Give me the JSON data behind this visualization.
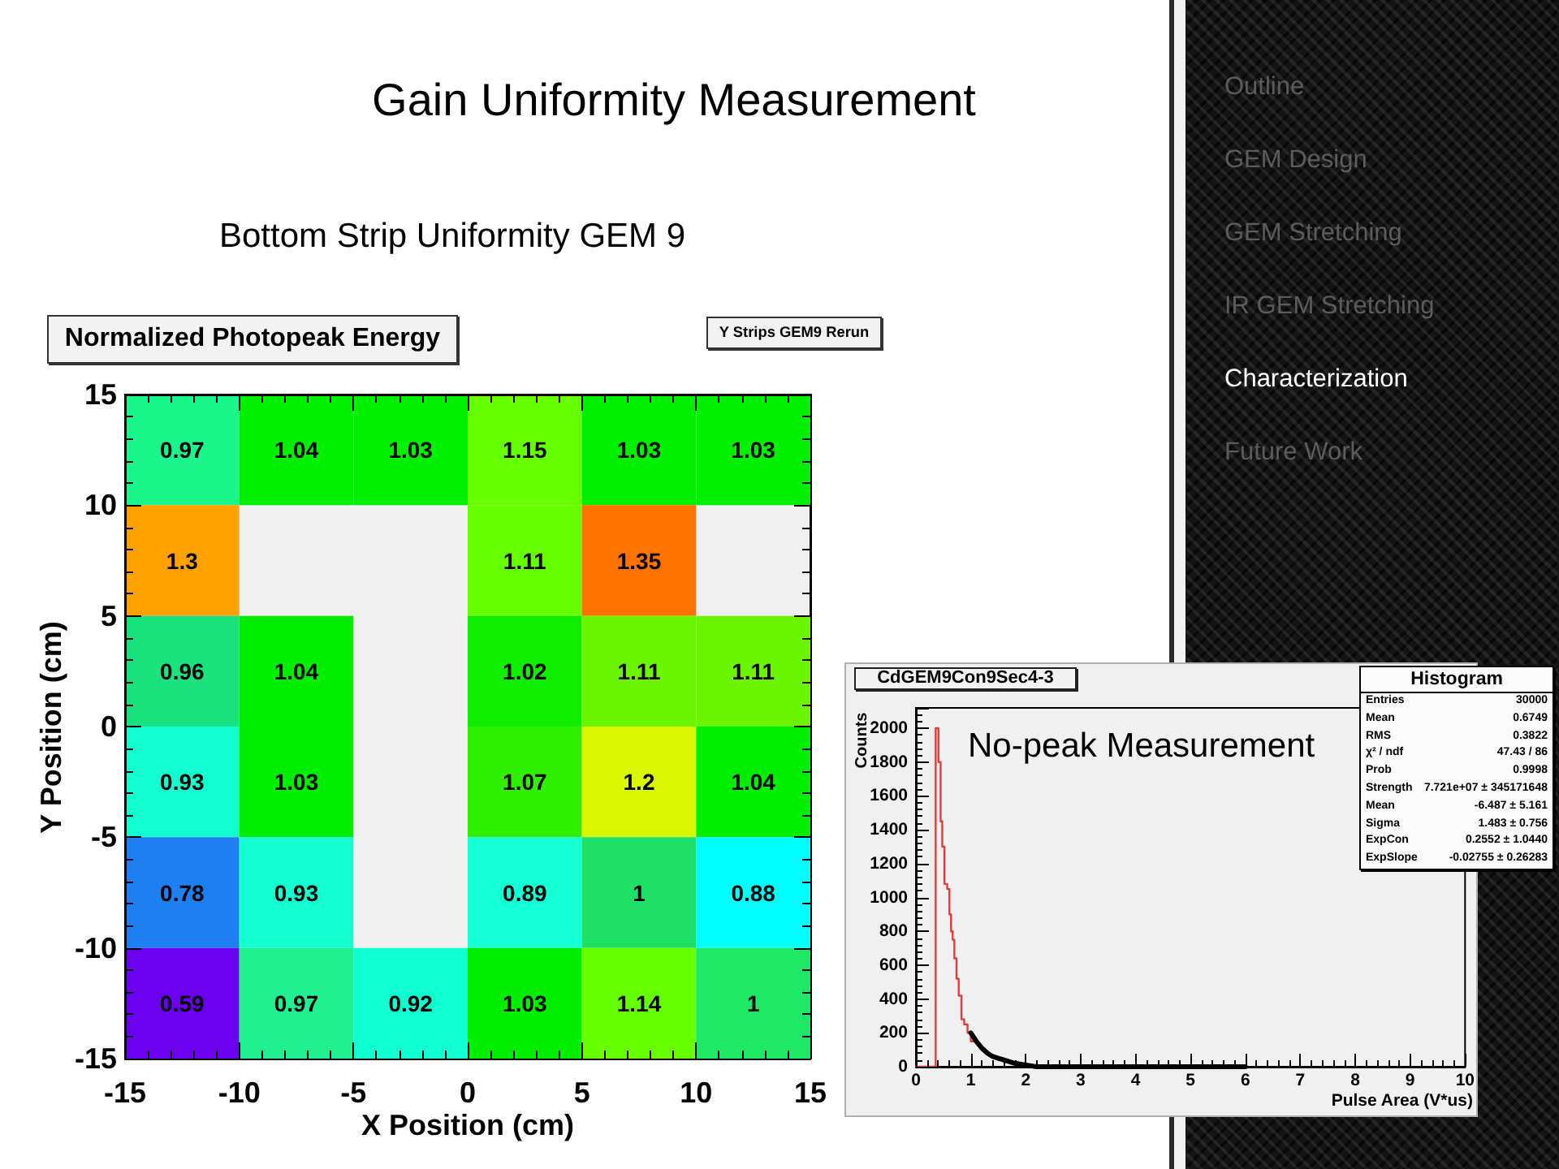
{
  "chart_data": [
    {
      "type": "heatmap",
      "title": "Gain Uniformity Measurement",
      "subtitle": "Bottom Strip Uniformity GEM 9",
      "annotations": [
        "Normalized Photopeak Energy",
        "Y Strips GEM9 Rerun"
      ],
      "xlabel": "X Position (cm)",
      "ylabel": "Y Position (cm)",
      "xlim": [
        -15,
        15
      ],
      "xticks": [
        -15,
        -10,
        -5,
        0,
        5,
        10,
        15
      ],
      "ylim": [
        -15,
        15
      ],
      "yticks": [
        -15,
        -10,
        -5,
        0,
        5,
        10,
        15
      ],
      "cells": [
        [
          0.97,
          1.04,
          1.03,
          1.15,
          1.03,
          1.03
        ],
        [
          1.3,
          null,
          null,
          1.11,
          1.35,
          null
        ],
        [
          0.96,
          1.04,
          null,
          1.02,
          1.11,
          1.11
        ],
        [
          0.93,
          1.03,
          null,
          1.07,
          1.2,
          1.04
        ],
        [
          0.78,
          0.93,
          null,
          0.89,
          1,
          0.88
        ],
        [
          0.59,
          0.97,
          0.92,
          1.03,
          1.14,
          1
        ]
      ],
      "colors": [
        [
          "#1af58c",
          "#00f000",
          "#00f000",
          "#66ff00",
          "#00f000",
          "#00f000"
        ],
        [
          "#ffa200",
          null,
          null,
          "#66ff00",
          "#ff7300",
          null
        ],
        [
          "#1ae27e",
          "#00ee00",
          null,
          "#10ee00",
          "#6cf500",
          "#6cf500"
        ],
        [
          "#12ffd0",
          "#00ee00",
          null,
          "#30f000",
          "#d9f700",
          "#00ee00"
        ],
        [
          "#1e7ff0",
          "#14ffd0",
          null,
          "#14ffd6",
          "#1ee066",
          "#00ffff"
        ],
        [
          "#6a00ee",
          "#20f090",
          "#10ffd0",
          "#00ee00",
          "#66ff00",
          "#1ee866"
        ]
      ],
      "data_labels": true
    },
    {
      "type": "step",
      "title": "CdGEM9Con9Sec4-3",
      "xlabel": "Pulse Area (V*us)",
      "ylabel": "Counts",
      "xlim": [
        0,
        10
      ],
      "xticks": [
        0,
        1,
        2,
        3,
        4,
        5,
        6,
        7,
        8,
        9,
        10
      ],
      "ylim": [
        0,
        2120
      ],
      "yticks": [
        0,
        200,
        400,
        600,
        800,
        1000,
        1200,
        1400,
        1600,
        1800,
        2000
      ],
      "series": [
        {
          "color": "#e23b3b",
          "x": [
            0,
            0.36,
            0.41,
            0.45,
            0.48,
            0.52,
            0.57,
            0.61,
            0.64,
            0.67,
            0.7,
            0.74,
            0.78,
            0.83,
            0.88,
            0.94,
            1.0,
            1.05
          ],
          "values": [
            0,
            2000,
            1800,
            1450,
            1300,
            1080,
            1050,
            900,
            800,
            750,
            640,
            520,
            420,
            280,
            250,
            200,
            150,
            150
          ]
        },
        {
          "type": "line",
          "color": "#000000",
          "x": [
            1.0,
            1.1,
            1.2,
            1.3,
            1.4,
            1.5,
            1.6,
            1.8,
            2.0,
            2.2,
            2.5,
            3,
            4,
            5,
            6
          ],
          "values": [
            200,
            150,
            110,
            80,
            60,
            50,
            40,
            20,
            10,
            0,
            0,
            0,
            0,
            0,
            0
          ]
        }
      ],
      "annotations": [
        "No-peak Measurement",
        "Histogram",
        "Entries",
        "30000",
        "Mean",
        "0.6749",
        "RMS",
        "0.3822",
        "χ² / ndf",
        "47.43 / 86",
        "Prob",
        "0.9998",
        "Strength",
        "7.721e+07 ± 345171648",
        "Mean",
        "-6.487 ± 5.161",
        "Sigma",
        "1.483 ± 0.756",
        "ExpCon",
        "0.2552 ± 1.0440",
        "ExpSlope",
        "-0.02755 ± 0.26283"
      ]
    },
    {
      "type": "other",
      "annotations": [
        "Outline",
        "GEM Design",
        "GEM Stretching",
        "IR GEM Stretching",
        "Characterization",
        "Future Work"
      ],
      "colors": [
        "#5c5c5c",
        "#5c5c5c",
        "#5c5c5c",
        "#5c5c5c",
        "#ffffff",
        "#5c5c5c"
      ]
    }
  ]
}
